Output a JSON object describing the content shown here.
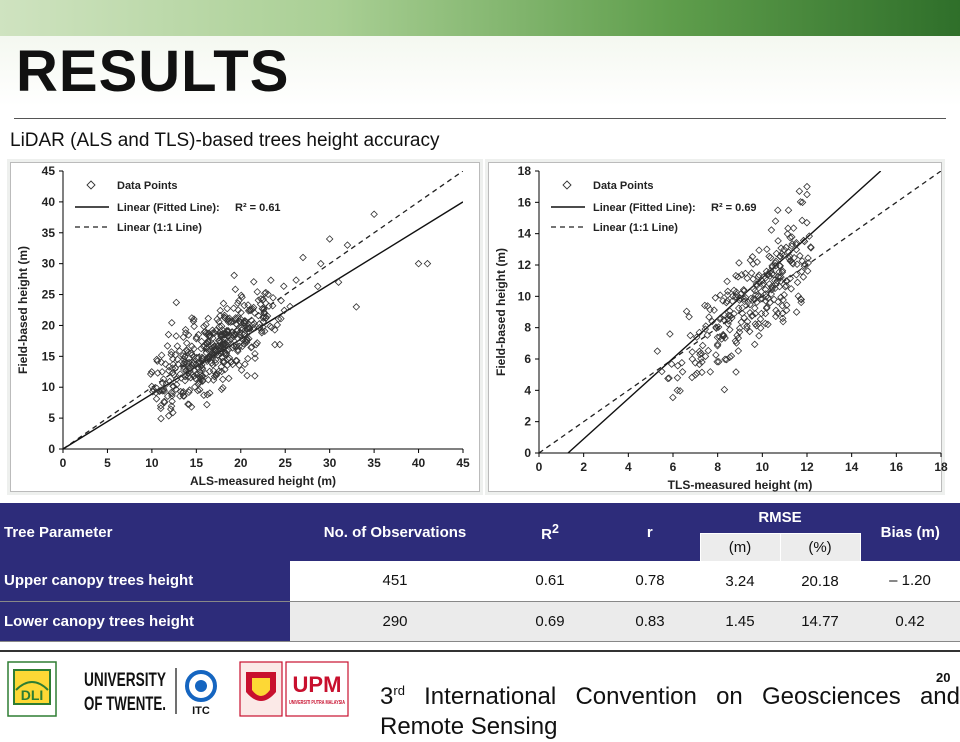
{
  "slide": {
    "title": "RESULTS",
    "subtitle": "LiDAR (ALS and TLS)-based trees height accuracy",
    "page_number": "20"
  },
  "chart_data": [
    {
      "type": "scatter",
      "xlabel": "ALS-measured height (m)",
      "ylabel": "Field-based height (m)",
      "xlim": [
        0,
        45
      ],
      "ylim": [
        0,
        45
      ],
      "xticks": [
        "0",
        "5",
        "10",
        "15",
        "20",
        "25",
        "30",
        "35",
        "40",
        "45"
      ],
      "yticks": [
        "0",
        "5",
        "10",
        "15",
        "20",
        "25",
        "30",
        "35",
        "40",
        "45"
      ],
      "legend_position": "top-left",
      "legend": {
        "points": "Data Points",
        "fit": "Linear (Fitted Line):",
        "r2": "R² = 0.61",
        "one_to_one": "Linear (1:1 Line)"
      },
      "fit_line": {
        "x": [
          0,
          45
        ],
        "y": [
          0,
          40
        ]
      },
      "one_to_one_line": {
        "x": [
          0,
          45
        ],
        "y": [
          0,
          45
        ]
      },
      "point_cloud": {
        "count": 451,
        "x_center": 17,
        "x_spread": 4,
        "x_min": 9,
        "x_max": 41,
        "slope": 0.89,
        "noise": 3.2
      },
      "outliers": [
        [
          40,
          30
        ],
        [
          41,
          30
        ],
        [
          35,
          38
        ],
        [
          33,
          23
        ],
        [
          31,
          27
        ],
        [
          29,
          30
        ],
        [
          27,
          31
        ],
        [
          32,
          33
        ],
        [
          30,
          34
        ]
      ]
    },
    {
      "type": "scatter",
      "xlabel": "TLS-measured height (m)",
      "ylabel": "Field-based height (m)",
      "xlim": [
        0,
        18
      ],
      "ylim": [
        0,
        18
      ],
      "xticks": [
        "0",
        "2",
        "4",
        "6",
        "8",
        "10",
        "12",
        "14",
        "16",
        "18"
      ],
      "yticks": [
        "0",
        "2",
        "4",
        "6",
        "8",
        "10",
        "12",
        "14",
        "16",
        "18"
      ],
      "legend_position": "top-left",
      "legend": {
        "points": "Data Points",
        "fit": "Linear (Fitted Line):",
        "r2": "R² = 0.69",
        "one_to_one": "Linear (1:1 Line)"
      },
      "fit_line": {
        "x": [
          1.3,
          15.3
        ],
        "y": [
          0,
          18
        ]
      },
      "one_to_one_line": {
        "x": [
          0,
          18
        ],
        "y": [
          0,
          18
        ]
      },
      "point_cloud": {
        "count": 290,
        "x_center": 9.6,
        "x_spread": 1.8,
        "x_min": 5.2,
        "x_max": 12.2,
        "slope": 1.2,
        "noise": 1.45
      },
      "outliers": [
        [
          12,
          17
        ],
        [
          12,
          16.5
        ],
        [
          11.8,
          16
        ],
        [
          5.3,
          6.5
        ],
        [
          5.5,
          5.2
        ],
        [
          6.2,
          4.8
        ]
      ]
    }
  ],
  "table": {
    "headers": {
      "parameter": "Tree Parameter",
      "observations": "No. of Observations",
      "r2_base": "R",
      "r2_sup": "2",
      "r": "r",
      "rmse": "RMSE",
      "rmse_m": "(m)",
      "rmse_pct": "(%)",
      "bias": "Bias (m)"
    },
    "rows": [
      {
        "parameter": "Upper canopy trees height",
        "observations": "451",
        "r2": "0.61",
        "r": "0.78",
        "rmse_m": "3.24",
        "rmse_pct": "20.18",
        "bias": "– 1.20"
      },
      {
        "parameter": "Lower canopy trees height",
        "observations": "290",
        "r2": "0.69",
        "r": "0.83",
        "rmse_m": "1.45",
        "rmse_pct": "14.77",
        "bias": "0.42"
      }
    ]
  },
  "footer": {
    "ordinal_base": "3",
    "ordinal_sup": "rd",
    "text": "International Convention on Geosciences and Remote Sensing",
    "logos": {
      "dli": "DLI",
      "twente_line1": "UNIVERSITY",
      "twente_line2": "OF TWENTE.",
      "itc": "ITC",
      "upm": "UPM",
      "upm_full": "UNIVERSITI PUTRA MALAYSIA"
    }
  },
  "colors": {
    "table_header": "#2d2c7a",
    "band_green": "#5f9e4c",
    "upm_red": "#c8102e"
  }
}
